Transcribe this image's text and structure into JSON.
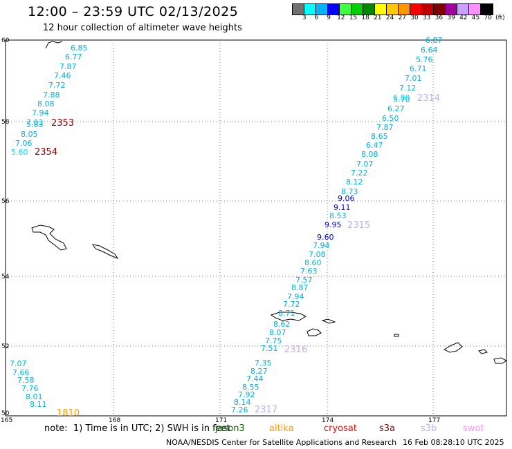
{
  "title": "12:00 – 23:59 UTC 02/13/2025",
  "subtitle": "12 hour collection of altimeter wave heights",
  "colorbar": {
    "colors": [
      "#707070",
      "#00ffff",
      "#00b4ff",
      "#0000ff",
      "#40ff40",
      "#00d000",
      "#008800",
      "#ffff00",
      "#ffc800",
      "#ff9600",
      "#ff0000",
      "#c00000",
      "#800000",
      "#a000a0",
      "#c8a0ff",
      "#ff90ff",
      "#000000"
    ],
    "labels": [
      "3",
      "6",
      "9",
      "12",
      "15",
      "18",
      "21",
      "24",
      "27",
      "30",
      "33",
      "36",
      "39",
      "42",
      "45",
      "70",
      "(ft)"
    ]
  },
  "axes": {
    "lat_labels": [
      "60",
      "58",
      "56",
      "54",
      "52",
      "50"
    ],
    "lon_labels": [
      "165",
      "168",
      "171",
      "174",
      "177"
    ]
  },
  "passes": [
    {
      "id": "2353",
      "color": "#800000"
    },
    {
      "id": "2354",
      "color": "#800000"
    },
    {
      "id": "2314",
      "color": "#c0b0f0"
    },
    {
      "id": "2315",
      "color": "#c0b0f0"
    },
    {
      "id": "2316",
      "color": "#c0b0f0"
    },
    {
      "id": "2317",
      "color": "#c0b0f0"
    },
    {
      "id": "1810",
      "color": "#ff9900"
    }
  ],
  "measurements": [
    {
      "v": "6.85",
      "c": "#00b0e0"
    },
    {
      "v": "6.77",
      "c": "#00b0e0"
    },
    {
      "v": "7.87",
      "c": "#00b0e0"
    },
    {
      "v": "7.46",
      "c": "#00b0e0"
    },
    {
      "v": "7.72",
      "c": "#00b0e0"
    },
    {
      "v": "7.88",
      "c": "#00b0e0"
    },
    {
      "v": "8.08",
      "c": "#00b0e0"
    },
    {
      "v": "7.94",
      "c": "#00b0e0"
    },
    {
      "v": "7.03",
      "c": "#00b0e0"
    },
    {
      "v": "5.83",
      "c": "#00b0e0"
    },
    {
      "v": "8.05",
      "c": "#00b0e0"
    },
    {
      "v": "7.06",
      "c": "#00b0e0"
    },
    {
      "v": "5.60",
      "c": "#00e0ff"
    },
    {
      "v": "6.87",
      "c": "#00b0e0"
    },
    {
      "v": "6.64",
      "c": "#00b0e0"
    },
    {
      "v": "5.76",
      "c": "#00b0e0"
    },
    {
      "v": "6.71",
      "c": "#00b0e0"
    },
    {
      "v": "7.01",
      "c": "#00b0e0"
    },
    {
      "v": "7.12",
      "c": "#00b0e0"
    },
    {
      "v": "6.80",
      "c": "#00e0ff"
    },
    {
      "v": "5.70",
      "c": "#00b0e0"
    },
    {
      "v": "6.27",
      "c": "#00b0e0"
    },
    {
      "v": "6.50",
      "c": "#00b0e0"
    },
    {
      "v": "7.87",
      "c": "#00b0e0"
    },
    {
      "v": "8.65",
      "c": "#00b0e0"
    },
    {
      "v": "6.47",
      "c": "#00b0e0"
    },
    {
      "v": "8.08",
      "c": "#00b0e0"
    },
    {
      "v": "7.07",
      "c": "#00b0e0"
    },
    {
      "v": "7.22",
      "c": "#00b0e0"
    },
    {
      "v": "8.12",
      "c": "#00b0e0"
    },
    {
      "v": "8.73",
      "c": "#00b0e0"
    },
    {
      "v": "9.06",
      "c": "#0000e0"
    },
    {
      "v": "9.11",
      "c": "#0000e0"
    },
    {
      "v": "8.53",
      "c": "#00b0e0"
    },
    {
      "v": "9.95",
      "c": "#0000e0"
    },
    {
      "v": "9.60",
      "c": "#0000e0"
    },
    {
      "v": "7.94",
      "c": "#00b0e0"
    },
    {
      "v": "7.08",
      "c": "#00b0e0"
    },
    {
      "v": "8.60",
      "c": "#00b0e0"
    },
    {
      "v": "7.63",
      "c": "#00b0e0"
    },
    {
      "v": "7.57",
      "c": "#00b0e0"
    },
    {
      "v": "8.87",
      "c": "#00b0e0"
    },
    {
      "v": "7.94",
      "c": "#00b0e0"
    },
    {
      "v": "7.72",
      "c": "#00b0e0"
    },
    {
      "v": "8.71",
      "c": "#00b0e0"
    },
    {
      "v": "8.62",
      "c": "#00b0e0"
    },
    {
      "v": "8.07",
      "c": "#00b0e0"
    },
    {
      "v": "7.75",
      "c": "#00b0e0"
    },
    {
      "v": "7.51",
      "c": "#00b0e0"
    },
    {
      "v": "7.35",
      "c": "#00b0e0"
    },
    {
      "v": "8.27",
      "c": "#00b0e0"
    },
    {
      "v": "7.44",
      "c": "#00b0e0"
    },
    {
      "v": "8.55",
      "c": "#00b0e0"
    },
    {
      "v": "7.92",
      "c": "#00b0e0"
    },
    {
      "v": "8.14",
      "c": "#00b0e0"
    },
    {
      "v": "7.26",
      "c": "#00b0e0"
    },
    {
      "v": "7.07",
      "c": "#00b0e0"
    },
    {
      "v": "7.66",
      "c": "#00b0e0"
    },
    {
      "v": "7.58",
      "c": "#00b0e0"
    },
    {
      "v": "7.76",
      "c": "#00b0e0"
    },
    {
      "v": "8.01",
      "c": "#00b0e0"
    },
    {
      "v": "8.11",
      "c": "#00b0e0"
    }
  ],
  "note": "note:  1) Time is in UTC; 2) SWH is in feet",
  "missions": [
    {
      "name": "jason3",
      "color": "#006600"
    },
    {
      "name": "altika",
      "color": "#ff9900"
    },
    {
      "name": "cryosat",
      "color": "#ff0000"
    },
    {
      "name": "s3a",
      "color": "#800000"
    },
    {
      "name": "s3b",
      "color": "#c0b0f0"
    },
    {
      "name": "swot",
      "color": "#ff90ff"
    }
  ],
  "credit": "NOAA/NESDIS Center for Satellite Applications and Research",
  "timestamp": "16 Feb 08:28:10 UTC 2025"
}
